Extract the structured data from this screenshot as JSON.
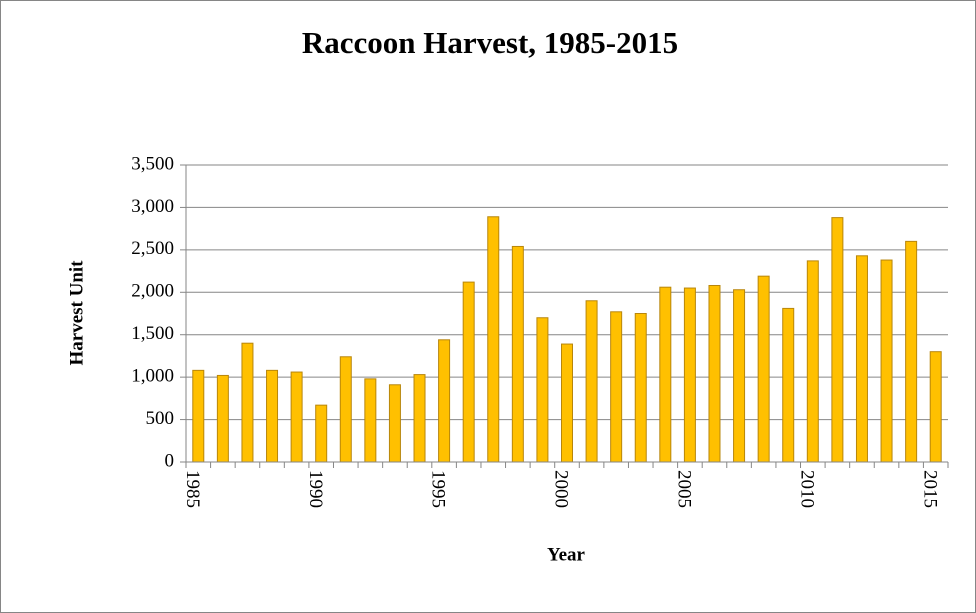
{
  "chart_data": {
    "type": "bar",
    "title": "Raccoon Harvest, 1985-2015",
    "x_label": "Year",
    "y_label": "Harvest Unit",
    "categories": [
      "1985",
      null,
      null,
      null,
      null,
      "1990",
      null,
      null,
      null,
      null,
      "1995",
      null,
      null,
      null,
      null,
      "2000",
      null,
      null,
      null,
      null,
      "2005",
      null,
      null,
      null,
      null,
      "2010",
      null,
      null,
      null,
      null,
      "2015"
    ],
    "values": [
      1080,
      1020,
      1400,
      1080,
      1060,
      670,
      1240,
      980,
      910,
      1030,
      1440,
      2120,
      2890,
      2540,
      1700,
      1390,
      1900,
      1770,
      1750,
      2060,
      2050,
      2080,
      2030,
      2190,
      1810,
      2370,
      2880,
      2430,
      2380,
      2600,
      1300
    ],
    "color": "#ffc000",
    "ylim": [
      0,
      3500
    ],
    "yticks": [
      0,
      500,
      {
        "value": 1000,
        "label": "1,000"
      },
      {
        "value": 1500,
        "label": "1,500"
      },
      {
        "value": 2000,
        "label": "2,000"
      },
      {
        "value": 2500,
        "label": "2,500"
      },
      {
        "value": 3000,
        "label": "3,000"
      },
      {
        "value": 3500,
        "label": "3,500"
      }
    ],
    "grid": true
  }
}
